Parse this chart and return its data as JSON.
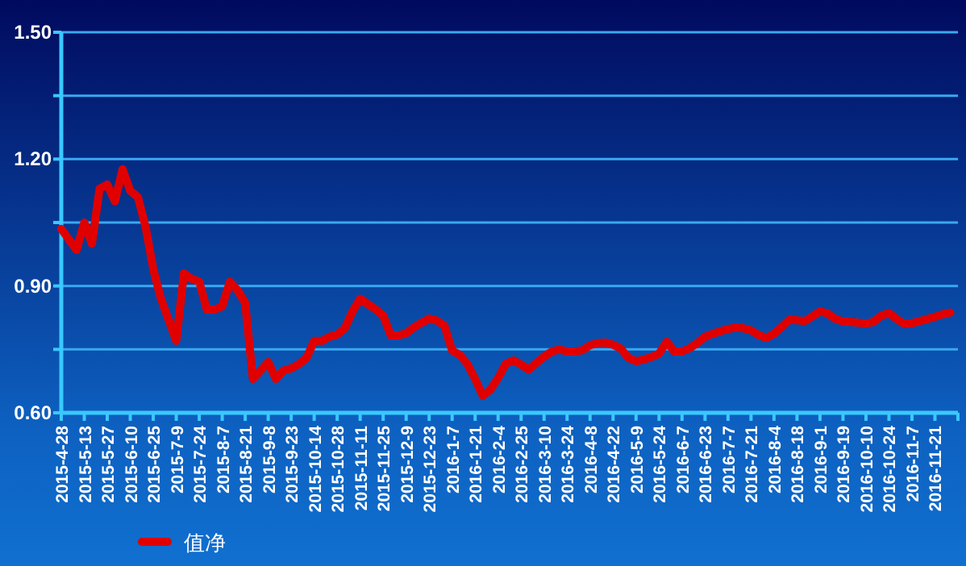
{
  "chart_data": {
    "type": "line",
    "grid": "y",
    "legend": "bottom left",
    "marker": "none",
    "line_style": "solid",
    "ylim": [
      0.6,
      1.5
    ],
    "yticks": [
      {
        "value": 0.6,
        "label": "0.60"
      },
      {
        "value": 0.75,
        "label": null
      },
      {
        "value": 0.9,
        "label": "0.90"
      },
      {
        "value": 1.05,
        "label": null
      },
      {
        "value": 1.2,
        "label": "1.20"
      },
      {
        "value": 1.35,
        "label": null
      },
      {
        "value": 1.5,
        "label": "1.50"
      }
    ],
    "categories": [
      "2015-4-28",
      null,
      null,
      "2015-5-13",
      null,
      null,
      "2015-5-27",
      null,
      null,
      "2015-6-10",
      null,
      null,
      "2015-6-25",
      null,
      null,
      "2015-7-9",
      null,
      null,
      "2015-7-24",
      null,
      null,
      "2015-8-7",
      null,
      null,
      "2015-8-21",
      null,
      null,
      "2015-9-8",
      null,
      null,
      "2015-9-23",
      null,
      null,
      "2015-10-14",
      null,
      null,
      "2015-10-28",
      null,
      null,
      "2015-11-11",
      null,
      null,
      "2015-11-25",
      null,
      null,
      "2015-12-9",
      null,
      null,
      "2015-12-23",
      null,
      null,
      "2016-1-7",
      null,
      null,
      "2016-1-21",
      null,
      null,
      "2016-2-4",
      null,
      null,
      "2016-2-25",
      null,
      null,
      "2016-3-10",
      null,
      null,
      "2016-3-24",
      null,
      null,
      "2016-4-8",
      null,
      null,
      "2016-4-22",
      null,
      null,
      "2016-5-9",
      null,
      null,
      "2016-5-24",
      null,
      null,
      "2016-6-7",
      null,
      null,
      "2016-6-23",
      null,
      null,
      "2016-7-7",
      null,
      null,
      "2016-7-21",
      null,
      null,
      "2016-8-4",
      null,
      null,
      "2016-8-18",
      null,
      null,
      "2016-9-1",
      null,
      null,
      "2016-9-19",
      null,
      null,
      "2016-10-10",
      null,
      null,
      "2016-10-24",
      null,
      null,
      "2016-11-7",
      null,
      null,
      "2016-11-21",
      null,
      null
    ],
    "series": [
      {
        "name": "值净",
        "color": "#e00000",
        "values": [
          1.035,
          1.01,
          0.985,
          1.05,
          1.0,
          1.13,
          1.14,
          1.1,
          1.176,
          1.125,
          1.11,
          1.04,
          0.94,
          0.87,
          0.82,
          0.77,
          0.93,
          0.917,
          0.91,
          0.844,
          0.844,
          0.852,
          0.91,
          0.89,
          0.86,
          0.68,
          0.7,
          0.72,
          0.68,
          0.7,
          0.705,
          0.715,
          0.73,
          0.77,
          0.77,
          0.78,
          0.785,
          0.8,
          0.84,
          0.87,
          0.857,
          0.845,
          0.83,
          0.783,
          0.783,
          0.788,
          0.802,
          0.813,
          0.823,
          0.818,
          0.806,
          0.747,
          0.737,
          0.715,
          0.68,
          0.64,
          0.655,
          0.682,
          0.716,
          0.724,
          0.714,
          0.702,
          0.718,
          0.733,
          0.745,
          0.75,
          0.745,
          0.745,
          0.748,
          0.76,
          0.765,
          0.766,
          0.761,
          0.752,
          0.73,
          0.722,
          0.726,
          0.732,
          0.74,
          0.768,
          0.745,
          0.745,
          0.753,
          0.765,
          0.78,
          0.787,
          0.793,
          0.798,
          0.802,
          0.8,
          0.795,
          0.784,
          0.777,
          0.787,
          0.803,
          0.82,
          0.819,
          0.817,
          0.828,
          0.84,
          0.835,
          0.822,
          0.816,
          0.815,
          0.813,
          0.811,
          0.815,
          0.83,
          0.836,
          0.822,
          0.81,
          0.812,
          0.817,
          0.822,
          0.827,
          0.833,
          0.837
        ]
      }
    ]
  }
}
